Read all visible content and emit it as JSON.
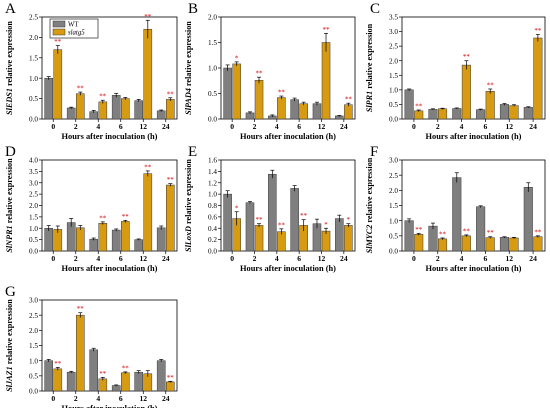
{
  "colors": {
    "wt": "#7f7f7f",
    "slatg5": "#d69b12",
    "sig": "#cc0000",
    "bar_edge": "#3a3a3a"
  },
  "legend": {
    "wt": "WT",
    "slatg5": "slatg5"
  },
  "chart_data": [
    {
      "type": "bar",
      "panel": "A",
      "ylabel": "SlEDS1 relative expression",
      "xlabel": "Hours after inoculation (h)",
      "categories": [
        "0",
        "2",
        "4",
        "6",
        "12",
        "24"
      ],
      "ylim": [
        0,
        2.5
      ],
      "yticks": [
        "0.0",
        "0.5",
        "1.0",
        "1.5",
        "2.0",
        "2.5"
      ],
      "series": [
        {
          "name": "WT",
          "values": [
            1.0,
            0.27,
            0.18,
            0.58,
            0.45,
            0.2
          ],
          "errors": [
            0.04,
            0.02,
            0.03,
            0.05,
            0.03,
            0.02
          ],
          "sig": [
            "",
            "",
            "",
            "",
            "",
            ""
          ]
        },
        {
          "name": "slatg5",
          "values": [
            1.7,
            0.62,
            0.42,
            0.5,
            2.2,
            0.48
          ],
          "errors": [
            0.1,
            0.04,
            0.04,
            0.03,
            0.22,
            0.04
          ],
          "sig": [
            "**",
            "**",
            "**",
            "",
            "**",
            "**"
          ]
        }
      ]
    },
    {
      "type": "bar",
      "panel": "B",
      "ylabel": "SlPAD4 relative expression",
      "xlabel": "Hours after inoculation (h)",
      "categories": [
        "0",
        "2",
        "4",
        "6",
        "12",
        "24"
      ],
      "ylim": [
        0,
        2.0
      ],
      "yticks": [
        "0.0",
        "0.5",
        "1.0",
        "1.5",
        "2.0"
      ],
      "series": [
        {
          "name": "WT",
          "values": [
            1.0,
            0.12,
            0.06,
            0.38,
            0.3,
            0.06
          ],
          "errors": [
            0.06,
            0.02,
            0.02,
            0.03,
            0.03,
            0.01
          ],
          "sig": [
            "",
            "",
            "",
            "",
            "",
            ""
          ]
        },
        {
          "name": "slatg5",
          "values": [
            1.08,
            0.76,
            0.42,
            0.3,
            1.5,
            0.28
          ],
          "errors": [
            0.04,
            0.06,
            0.03,
            0.03,
            0.18,
            0.03
          ],
          "sig": [
            "*",
            "**",
            "**",
            "",
            "**",
            "**"
          ]
        }
      ]
    },
    {
      "type": "bar",
      "panel": "C",
      "ylabel": "SlPR1 relative expression",
      "xlabel": "Hours after inoculation (h)",
      "categories": [
        "0",
        "2",
        "4",
        "6",
        "12",
        "24"
      ],
      "ylim": [
        0,
        3.5
      ],
      "yticks": [
        "0.0",
        "0.5",
        "1.0",
        "1.5",
        "2.0",
        "2.5",
        "3.0",
        "3.5"
      ],
      "series": [
        {
          "name": "WT",
          "values": [
            1.0,
            0.33,
            0.36,
            0.32,
            0.5,
            0.4
          ],
          "errors": [
            0.03,
            0.02,
            0.02,
            0.02,
            0.03,
            0.02
          ],
          "sig": [
            "",
            "",
            "",
            "",
            "",
            ""
          ]
        },
        {
          "name": "slatg5",
          "values": [
            0.28,
            0.35,
            1.85,
            0.95,
            0.46,
            2.78
          ],
          "errors": [
            0.03,
            0.02,
            0.15,
            0.08,
            0.03,
            0.12
          ],
          "sig": [
            "**",
            "",
            "**",
            "**",
            "",
            "**"
          ]
        }
      ]
    },
    {
      "type": "bar",
      "panel": "D",
      "ylabel": "SlNPR1 relative expression",
      "xlabel": "Hours after inoculation (h)",
      "categories": [
        "0",
        "2",
        "4",
        "6",
        "12",
        "24"
      ],
      "ylim": [
        0,
        4.0
      ],
      "yticks": [
        "0.0",
        "0.5",
        "1.0",
        "1.5",
        "2.0",
        "2.5",
        "3.0",
        "3.5",
        "4.0"
      ],
      "series": [
        {
          "name": "WT",
          "values": [
            1.0,
            1.25,
            0.52,
            0.92,
            0.5,
            1.02
          ],
          "errors": [
            0.12,
            0.18,
            0.05,
            0.05,
            0.03,
            0.08
          ],
          "sig": [
            "",
            "",
            "",
            "",
            "",
            ""
          ]
        },
        {
          "name": "slatg5",
          "values": [
            0.95,
            1.02,
            1.22,
            1.3,
            3.4,
            2.9
          ],
          "errors": [
            0.15,
            0.1,
            0.06,
            0.05,
            0.12,
            0.06
          ],
          "sig": [
            "",
            "",
            "**",
            "**",
            "**",
            "**"
          ]
        }
      ]
    },
    {
      "type": "bar",
      "panel": "E",
      "ylabel": "SlLoxD relative expression",
      "xlabel": "Hours after inoculation (h)",
      "categories": [
        "0",
        "2",
        "4",
        "6",
        "12",
        "24"
      ],
      "ylim": [
        0,
        1.6
      ],
      "yticks": [
        "0.0",
        "0.2",
        "0.4",
        "0.6",
        "0.8",
        "1.0",
        "1.2",
        "1.4",
        "1.6"
      ],
      "series": [
        {
          "name": "WT",
          "values": [
            1.0,
            0.85,
            1.35,
            1.1,
            0.48,
            0.57
          ],
          "errors": [
            0.06,
            0.02,
            0.07,
            0.05,
            0.08,
            0.06
          ],
          "sig": [
            "",
            "",
            "",
            "",
            "",
            ""
          ]
        },
        {
          "name": "slatg5",
          "values": [
            0.57,
            0.45,
            0.34,
            0.45,
            0.35,
            0.45
          ],
          "errors": [
            0.12,
            0.03,
            0.05,
            0.1,
            0.05,
            0.03
          ],
          "sig": [
            "*",
            "**",
            "**",
            "**",
            "*",
            "*"
          ]
        }
      ]
    },
    {
      "type": "bar",
      "panel": "F",
      "ylabel": "SlMYC2 relative expression",
      "xlabel": "Hours after inoculation (h)",
      "categories": [
        "0",
        "2",
        "4",
        "6",
        "12",
        "24"
      ],
      "ylim": [
        0,
        3.0
      ],
      "yticks": [
        "0.0",
        "0.5",
        "1.0",
        "1.5",
        "2.0",
        "2.5",
        "3.0"
      ],
      "series": [
        {
          "name": "WT",
          "values": [
            1.0,
            0.82,
            2.42,
            1.46,
            0.45,
            2.1
          ],
          "errors": [
            0.06,
            0.1,
            0.16,
            0.03,
            0.02,
            0.15
          ],
          "sig": [
            "",
            "",
            "",
            "",
            "",
            ""
          ]
        },
        {
          "name": "slatg5",
          "values": [
            0.55,
            0.4,
            0.5,
            0.44,
            0.43,
            0.47
          ],
          "errors": [
            0.03,
            0.03,
            0.03,
            0.03,
            0.02,
            0.03
          ],
          "sig": [
            "**",
            "**",
            "**",
            "**",
            "",
            "**"
          ]
        }
      ]
    },
    {
      "type": "bar",
      "panel": "G",
      "ylabel": "SlJAZ1 relative expression",
      "xlabel": "Hours after inoculation (h)",
      "categories": [
        "0",
        "2",
        "4",
        "6",
        "12",
        "24"
      ],
      "ylim": [
        0,
        3.0
      ],
      "yticks": [
        "0.0",
        "0.5",
        "1.0",
        "1.5",
        "2.0",
        "2.5",
        "3.0"
      ],
      "series": [
        {
          "name": "WT",
          "values": [
            1.0,
            0.62,
            1.36,
            0.18,
            0.62,
            1.0
          ],
          "errors": [
            0.04,
            0.03,
            0.05,
            0.02,
            0.05,
            0.04
          ],
          "sig": [
            "",
            "",
            "",
            "",
            "",
            ""
          ]
        },
        {
          "name": "slatg5",
          "values": [
            0.73,
            2.5,
            0.4,
            0.6,
            0.57,
            0.3
          ],
          "errors": [
            0.05,
            0.08,
            0.05,
            0.03,
            0.1,
            0.02
          ],
          "sig": [
            "**",
            "**",
            "**",
            "**",
            "",
            "**"
          ]
        }
      ]
    }
  ]
}
